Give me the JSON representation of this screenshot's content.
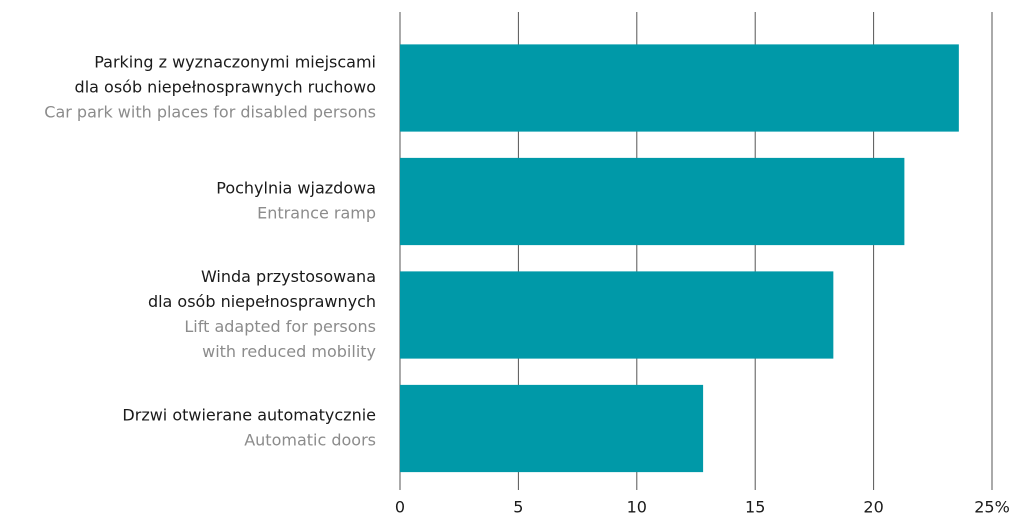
{
  "chart_data": {
    "type": "barh",
    "categories": [
      {
        "pl": [
          "Parking z wyznaczonymi miejscami",
          "dla osób niepełnosprawnych ruchowo"
        ],
        "en": [
          "Car park with places for  disabled persons"
        ]
      },
      {
        "pl": [
          "Pochylnia wjazdowa"
        ],
        "en": [
          "Entrance ramp"
        ]
      },
      {
        "pl": [
          "Winda przystosowana",
          "dla osób niepełnosprawnych"
        ],
        "en": [
          "Lift adapted for persons",
          "with reduced mobility"
        ]
      },
      {
        "pl": [
          "Drzwi otwierane automatycznie"
        ],
        "en": [
          "Automatic doors"
        ]
      }
    ],
    "values": [
      23.6,
      21.3,
      18.3,
      12.8
    ],
    "color": "#0099a8",
    "xlim": [
      0,
      25
    ],
    "xticks": [
      0,
      5,
      10,
      15,
      20,
      {
        "value": 25,
        "label": "25%"
      }
    ],
    "grid": true
  }
}
